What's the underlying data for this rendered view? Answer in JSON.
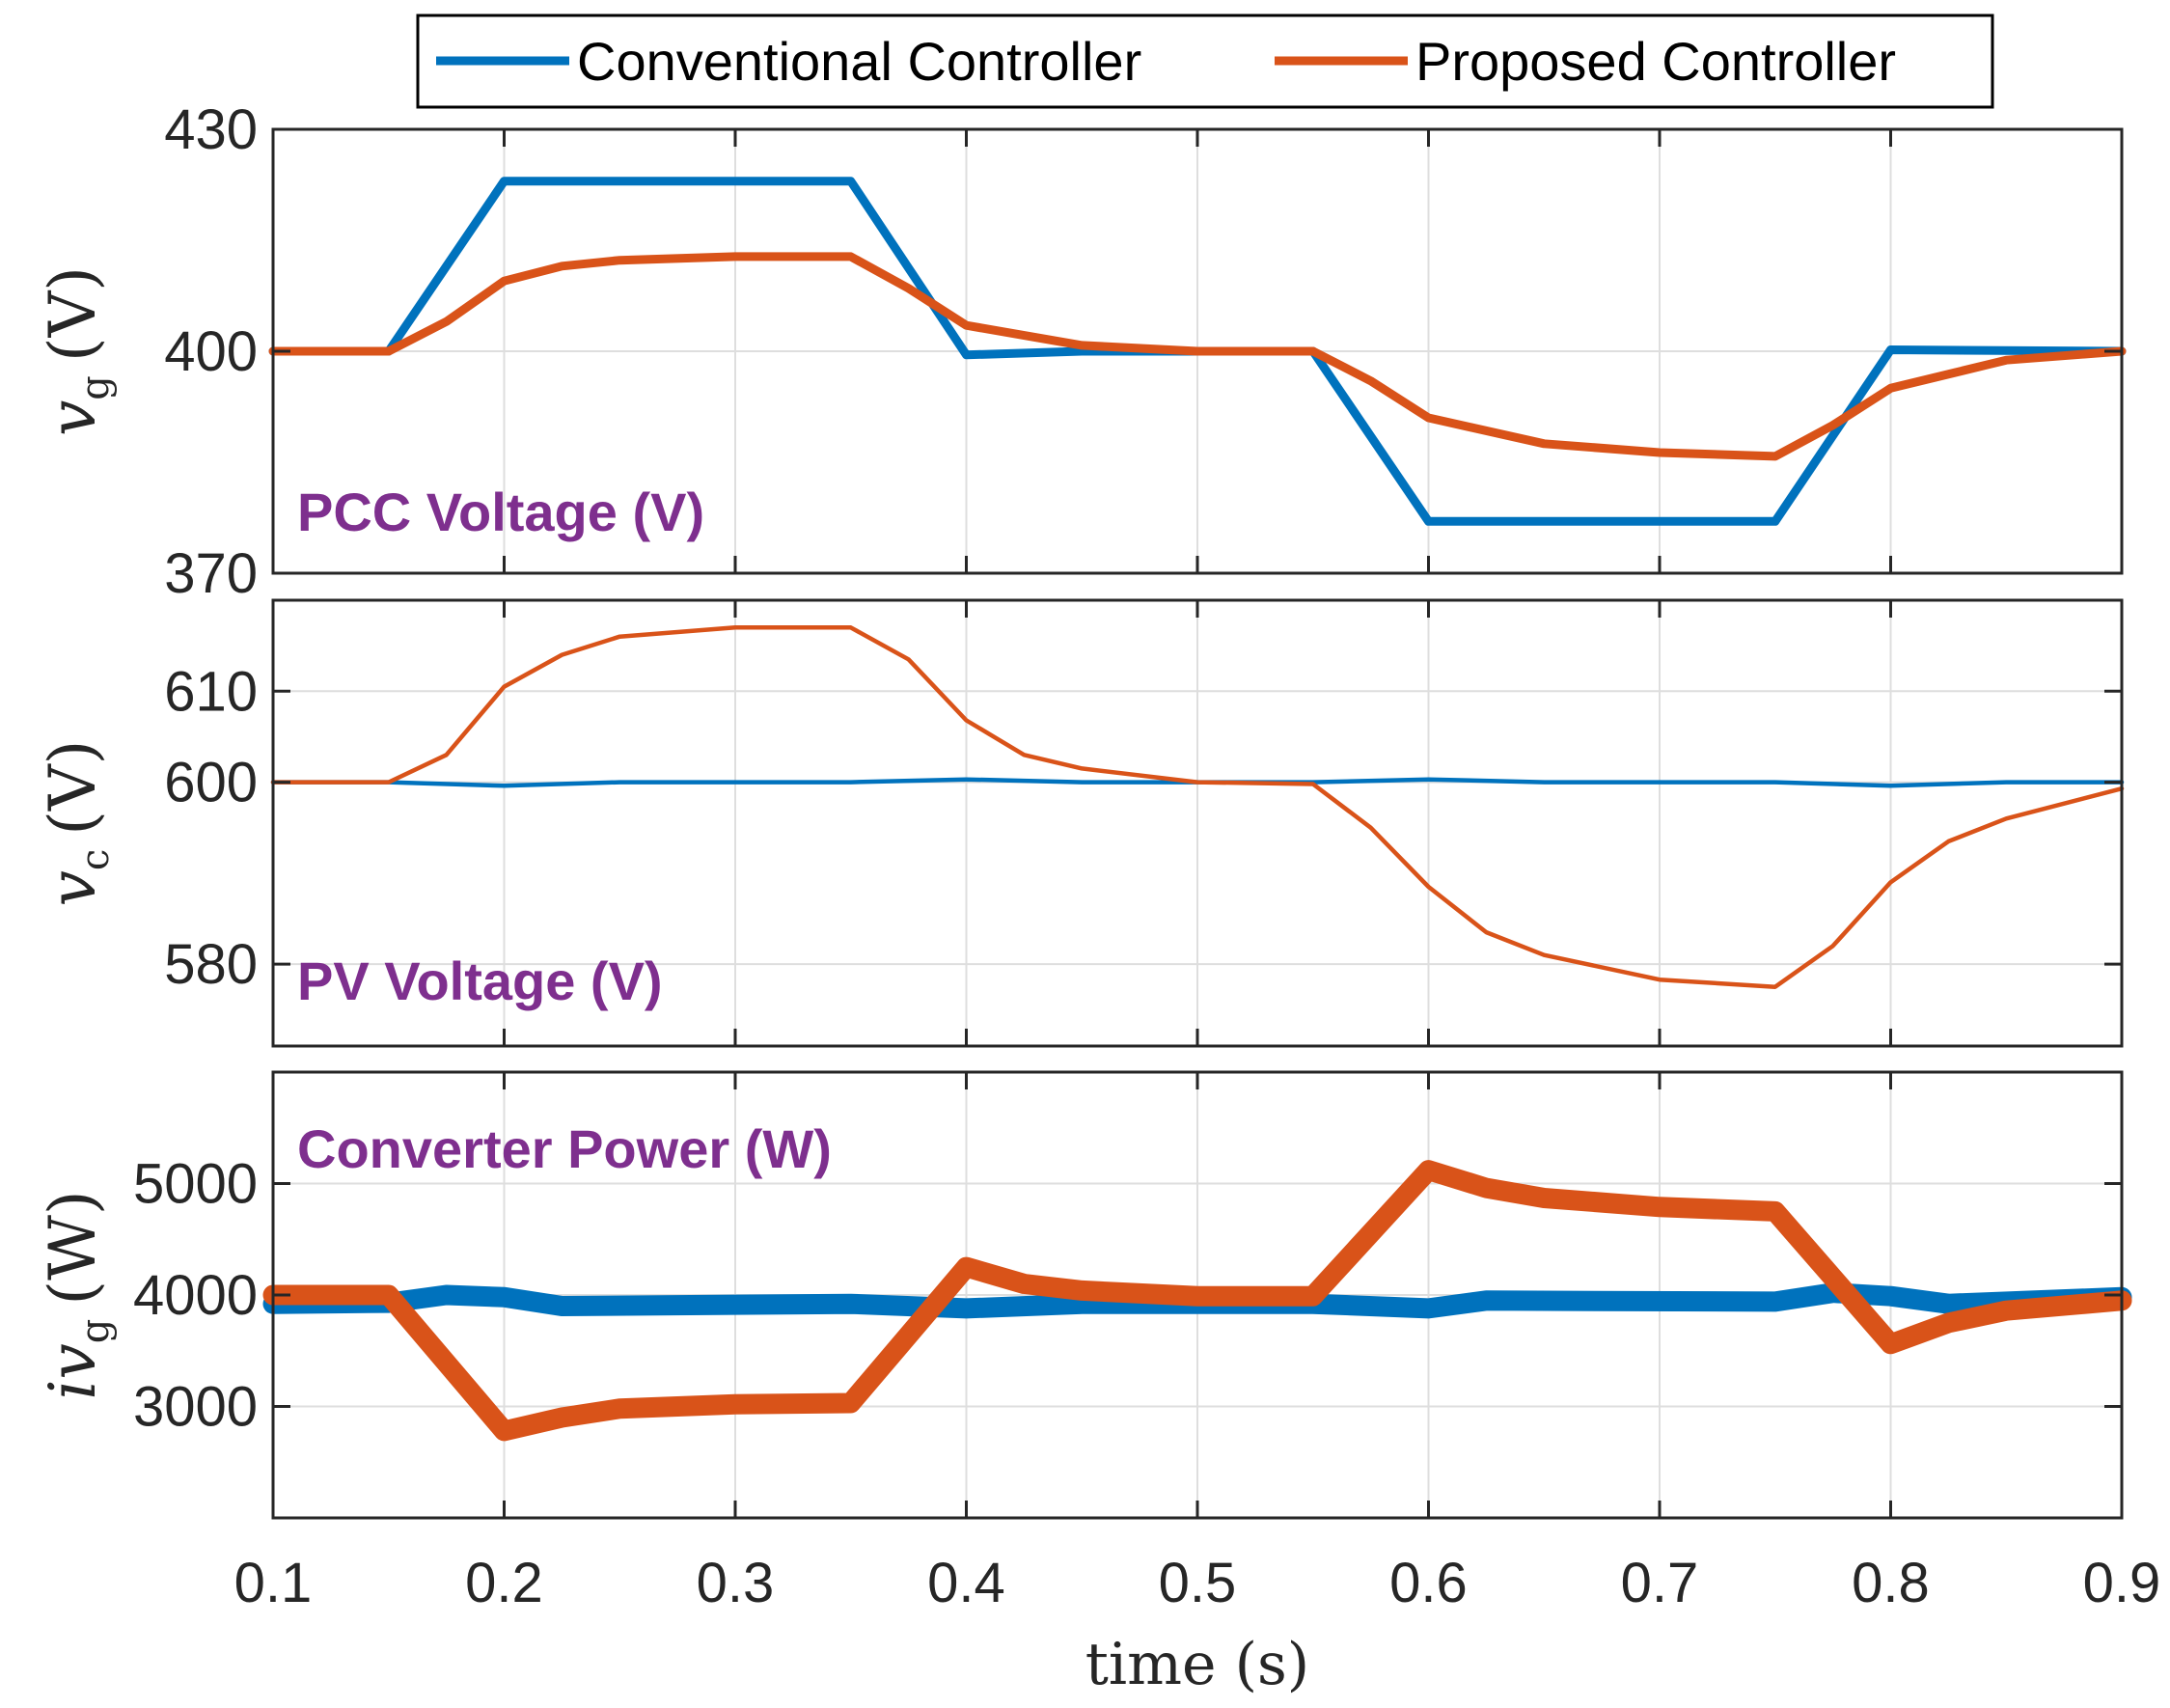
{
  "chart_data": {
    "type": "line",
    "xlabel": "time (s)",
    "xlim": [
      0.1,
      0.9
    ],
    "xticks": [
      "0.1",
      "0.2",
      "0.3",
      "0.4",
      "0.5",
      "0.6",
      "0.7",
      "0.8",
      "0.9"
    ],
    "grid": true,
    "legend": {
      "placement": "top-center",
      "entries": [
        "Conventional Controller",
        "Proposed Controller"
      ]
    },
    "colors": {
      "conventional": "#0072BD",
      "proposed": "#D95319",
      "annotation": "#7E2F8E"
    },
    "subplots": [
      {
        "annotation": "PCC Voltage (V)",
        "ylabel_main": "v",
        "ylabel_sub": "g",
        "ylabel_units": "(V)",
        "ylim": [
          370,
          430
        ],
        "yticks": [
          "370",
          "400",
          "430"
        ],
        "series": [
          {
            "name": "Conventional Controller",
            "width": 3,
            "x": [
              0.1,
              0.15,
              0.2,
              0.35,
              0.4,
              0.45,
              0.55,
              0.6,
              0.75,
              0.8,
              0.9
            ],
            "y": [
              400,
              400,
              423,
              423,
              399.5,
              400,
              400,
              377,
              377,
              400.2,
              400
            ]
          },
          {
            "name": "Proposed Controller",
            "width": 3,
            "x": [
              0.1,
              0.15,
              0.175,
              0.2,
              0.225,
              0.25,
              0.3,
              0.35,
              0.375,
              0.4,
              0.45,
              0.5,
              0.55,
              0.575,
              0.6,
              0.65,
              0.7,
              0.75,
              0.775,
              0.8,
              0.85,
              0.9
            ],
            "y": [
              400,
              400,
              404,
              409.5,
              411.5,
              412.3,
              412.8,
              412.8,
              408.5,
              403.5,
              400.8,
              400,
              400,
              396,
              391,
              387.5,
              386.3,
              385.8,
              390,
              395,
              398.8,
              400
            ]
          }
        ]
      },
      {
        "annotation": "PV Voltage (V)",
        "ylabel_main": "v",
        "ylabel_sub": "c",
        "ylabel_units": "(V)",
        "ylim": [
          571,
          620
        ],
        "yticks": [
          "580",
          "600",
          "610"
        ],
        "series": [
          {
            "name": "Conventional Controller",
            "width": 1.5,
            "x": [
              0.1,
              0.15,
              0.2,
              0.25,
              0.35,
              0.4,
              0.45,
              0.55,
              0.6,
              0.65,
              0.75,
              0.8,
              0.85,
              0.9
            ],
            "y": [
              600,
              600,
              599.6,
              600,
              600,
              600.3,
              600,
              600,
              600.3,
              600,
              600,
              599.6,
              600,
              600
            ]
          },
          {
            "name": "Proposed Controller",
            "width": 1.5,
            "x": [
              0.1,
              0.15,
              0.175,
              0.2,
              0.225,
              0.25,
              0.3,
              0.35,
              0.375,
              0.4,
              0.425,
              0.45,
              0.5,
              0.55,
              0.575,
              0.6,
              0.625,
              0.65,
              0.7,
              0.75,
              0.775,
              0.8,
              0.825,
              0.85,
              0.9
            ],
            "y": [
              600,
              600,
              603,
              610.5,
              614,
              616,
              617,
              617,
              613.5,
              606.8,
              603,
              601.5,
              600,
              599.8,
              595,
              588.5,
              583.5,
              581,
              578.3,
              577.5,
              582,
              589,
              593.5,
              596,
              599.3
            ]
          }
        ]
      },
      {
        "annotation": "Converter Power (W)",
        "ylabel_main": "iv",
        "ylabel_sub": "g",
        "ylabel_units": "(W)",
        "ylim": [
          2000,
          6000
        ],
        "yticks": [
          "3000",
          "4000",
          "5000"
        ],
        "series": [
          {
            "name": "Conventional Controller",
            "width": 7,
            "x": [
              0.1,
              0.15,
              0.175,
              0.2,
              0.225,
              0.35,
              0.4,
              0.45,
              0.55,
              0.6,
              0.625,
              0.75,
              0.775,
              0.8,
              0.825,
              0.9
            ],
            "y": [
              3920,
              3930,
              4000,
              3980,
              3900,
              3920,
              3880,
              3920,
              3920,
              3880,
              3950,
              3940,
              4020,
              3990,
              3920,
              3980
            ]
          },
          {
            "name": "Proposed Controller",
            "width": 7,
            "x": [
              0.1,
              0.15,
              0.2,
              0.225,
              0.25,
              0.3,
              0.35,
              0.4,
              0.425,
              0.45,
              0.5,
              0.55,
              0.6,
              0.625,
              0.65,
              0.7,
              0.75,
              0.8,
              0.825,
              0.85,
              0.9
            ],
            "y": [
              4000,
              4000,
              2780,
              2900,
              2980,
              3020,
              3030,
              4250,
              4100,
              4040,
              3990,
              3990,
              5120,
              4960,
              4870,
              4790,
              4750,
              3560,
              3750,
              3860,
              3950
            ]
          }
        ]
      }
    ]
  }
}
